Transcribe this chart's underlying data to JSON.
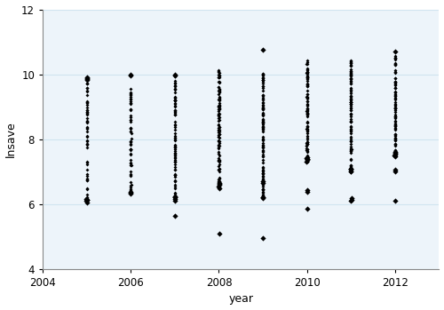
{
  "title": "",
  "xlabel": "year",
  "ylabel": "lnsave",
  "xlim": [
    2004,
    2013
  ],
  "ylim": [
    4,
    12
  ],
  "xticks": [
    2004,
    2006,
    2008,
    2010,
    2012
  ],
  "yticks": [
    4,
    6,
    8,
    10,
    12
  ],
  "years": [
    2005,
    2006,
    2007,
    2008,
    2009,
    2010,
    2011,
    2012
  ],
  "background_color": "#EDF4FA",
  "marker_color": "#000000",
  "marker": "D",
  "marker_size": 2.0,
  "grid_color": "#D0E4F0",
  "point_counts": [
    55,
    55,
    80,
    100,
    100,
    90,
    90,
    90
  ],
  "jitter_scale": 0.005,
  "year_data": {
    "2005": {
      "dense_range": [
        6.1,
        9.85
      ],
      "sparse_low": [
        6.05,
        6.1,
        6.12,
        6.14,
        6.16
      ],
      "outliers_high": [
        9.82,
        9.86,
        9.88,
        9.92
      ]
    },
    "2006": {
      "dense_range": [
        6.35,
        9.6
      ],
      "sparse_low": [
        6.32,
        6.35,
        6.38
      ],
      "outliers_high": [
        9.95,
        10.0
      ]
    },
    "2007": {
      "dense_range": [
        6.2,
        9.95
      ],
      "sparse_low": [
        6.1,
        6.15,
        6.2,
        6.22,
        6.25
      ],
      "outliers_high": [
        9.97,
        10.0
      ],
      "outliers_low": [
        5.65
      ]
    },
    "2008": {
      "dense_range": [
        6.55,
        10.15
      ],
      "sparse_low": [
        6.5,
        6.55,
        6.6,
        6.62,
        6.65
      ],
      "outliers_low": [
        5.1
      ]
    },
    "2009": {
      "dense_range": [
        6.2,
        10.05
      ],
      "sparse_low": [
        6.18,
        6.2,
        6.22,
        6.65,
        6.7
      ],
      "outliers_high": [
        10.75
      ],
      "outliers_low": [
        4.95
      ]
    },
    "2010": {
      "dense_range": [
        7.3,
        10.45
      ],
      "sparse_low": [
        7.3,
        7.35,
        7.38,
        7.4,
        7.42,
        7.45
      ],
      "outliers_low": [
        5.85,
        6.38,
        6.42
      ]
    },
    "2011": {
      "dense_range": [
        7.0,
        10.45
      ],
      "sparse_low": [
        7.0,
        7.02,
        7.05,
        7.08,
        7.1
      ],
      "outliers_low": [
        6.1,
        6.14,
        6.18
      ]
    },
    "2012": {
      "dense_range": [
        7.5,
        10.65
      ],
      "sparse_low": [
        7.48,
        7.5,
        7.52,
        7.55,
        7.58,
        7.6
      ],
      "outliers_low": [
        6.1,
        7.0,
        7.05
      ],
      "outliers_high": [
        10.7
      ]
    }
  }
}
